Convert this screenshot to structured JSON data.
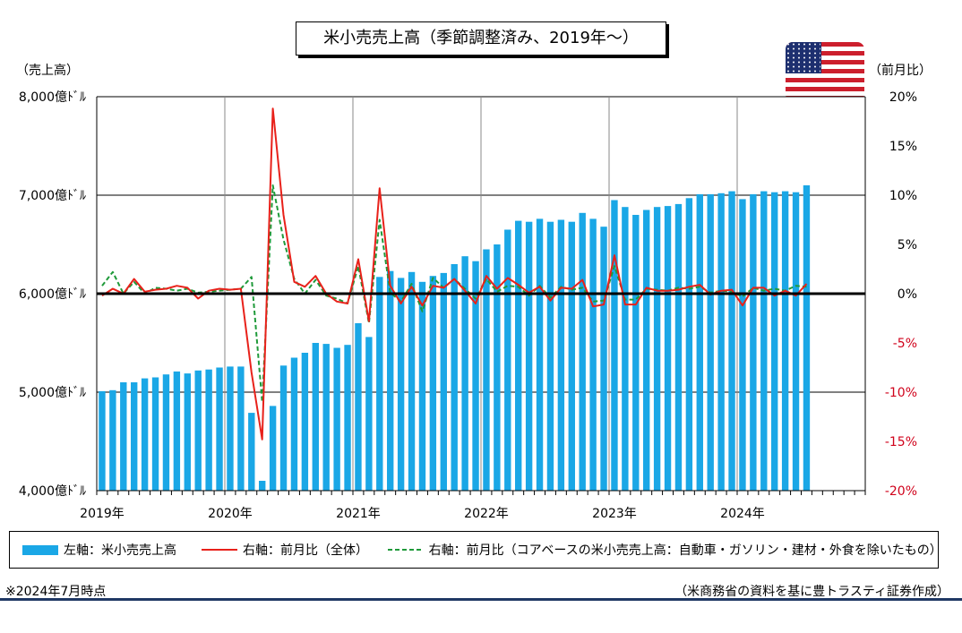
{
  "title": "米小売売上高（季節調整済み、2019年～）",
  "left_axis_title": "（売上高）",
  "right_axis_title": "（前月比）",
  "legend": {
    "bars": "左軸：米小売売上高",
    "red_line": "右軸：前月比（全体）",
    "green_line": "右軸：前月比（コアベースの米小売売上高：自動車・ガソリン・建材・外食を除いたもの）"
  },
  "note": "※2024年7月時点",
  "source": "（米商務省の資料を基に豊トラスティ証券作成）",
  "colors": {
    "bars": "#1aa7e6",
    "red_line": "#e8211a",
    "green_line": "#1f9a3a",
    "right_axis_text": "#d0021b",
    "rule": "#1f3864"
  },
  "icons": {
    "flag": "us-flag-icon"
  },
  "chart_data": {
    "type": "bar",
    "x_start": "2019-01",
    "x_end": "2024-07",
    "x_ticks": [
      "2019年",
      "2020年",
      "2021年",
      "2022年",
      "2023年",
      "2024年"
    ],
    "y_left_ticks": [
      "4,000億ﾄﾞﾙ",
      "5,000億ﾄﾞﾙ",
      "6,000億ﾄﾞﾙ",
      "7,000億ﾄﾞﾙ",
      "8,000億ﾄﾞﾙ"
    ],
    "y_left_range": [
      4000,
      8000
    ],
    "y_right_ticks": [
      "-20%",
      "-15%",
      "-10%",
      "-5%",
      "0%",
      "5%",
      "10%",
      "15%",
      "20%"
    ],
    "y_right_range": [
      -20,
      20
    ],
    "grid": true,
    "legend_position": "bottom",
    "series": [
      {
        "name": "左軸：米小売売上高",
        "type": "bar",
        "axis": "left",
        "values": [
          5010,
          5020,
          5100,
          5100,
          5140,
          5150,
          5180,
          5210,
          5190,
          5220,
          5230,
          5250,
          5260,
          5260,
          4790,
          4100,
          4860,
          5270,
          5350,
          5400,
          5500,
          5490,
          5450,
          5480,
          5700,
          5560,
          6170,
          6230,
          6160,
          6220,
          6120,
          6180,
          6210,
          6300,
          6380,
          6330,
          6450,
          6500,
          6650,
          6740,
          6730,
          6760,
          6730,
          6750,
          6730,
          6820,
          6760,
          6680,
          6950,
          6880,
          6800,
          6850,
          6880,
          6890,
          6910,
          6970,
          7010,
          7010,
          7020,
          7040,
          6960,
          7010,
          7040,
          7030,
          7040,
          7030,
          7100
        ]
      },
      {
        "name": "右軸：前月比（全体）",
        "type": "line",
        "axis": "right",
        "values": [
          -0.2,
          0.5,
          0.0,
          1.5,
          0.2,
          0.4,
          0.5,
          0.8,
          0.6,
          -0.5,
          0.3,
          0.5,
          0.4,
          0.5,
          -8.0,
          -14.8,
          18.8,
          8.0,
          1.2,
          0.7,
          1.8,
          0.0,
          -0.8,
          -1.0,
          3.5,
          -2.8,
          10.7,
          0.8,
          -1.0,
          0.7,
          -1.2,
          0.8,
          0.6,
          1.5,
          0.3,
          -1.0,
          1.8,
          0.5,
          1.6,
          0.9,
          0.1,
          0.7,
          -0.7,
          0.6,
          0.5,
          1.4,
          -1.3,
          -1.1,
          3.9,
          -1.1,
          -1.1,
          0.6,
          0.3,
          0.3,
          0.4,
          0.7,
          0.9,
          -0.1,
          0.3,
          0.4,
          -1.2,
          0.6,
          0.6,
          -0.2,
          0.3,
          -0.2,
          1.0
        ]
      },
      {
        "name": "右軸：前月比（コアベースの米小売売上高：自動車・ガソリン・建材・外食を除いたもの）",
        "type": "line",
        "axis": "right",
        "values": [
          0.8,
          2.2,
          0.0,
          1.2,
          0.0,
          0.6,
          0.5,
          0.3,
          0.5,
          0.1,
          0.2,
          0.3,
          0.4,
          0.5,
          1.7,
          -11.0,
          11.0,
          5.5,
          1.5,
          0.0,
          1.4,
          -0.2,
          -0.5,
          -1.0,
          2.8,
          -3.0,
          7.5,
          0.1,
          -0.8,
          1.0,
          -1.8,
          1.6,
          0.6,
          1.5,
          0.5,
          -0.5,
          1.5,
          0.2,
          0.8,
          0.7,
          -0.2,
          0.8,
          -0.4,
          0.7,
          0.4,
          0.6,
          -0.8,
          -0.7,
          2.8,
          -0.6,
          -0.6,
          0.5,
          0.4,
          0.3,
          0.6,
          0.5,
          0.7,
          0.1,
          0.3,
          0.2,
          -0.3,
          0.6,
          0.3,
          0.5,
          0.3,
          0.8,
          0.7
        ]
      }
    ]
  }
}
